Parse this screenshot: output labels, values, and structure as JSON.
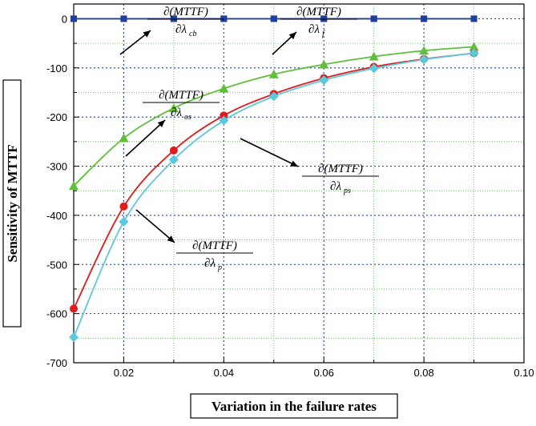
{
  "chart_data": {
    "type": "line",
    "xlabel": "Variation in the failure rates",
    "ylabel": "Sensitivity of MTTF",
    "xlim": [
      0.01,
      0.1
    ],
    "ylim": [
      -700,
      30
    ],
    "x_ticks": [
      "0.02",
      "0.04",
      "0.06",
      "0.08",
      "0.10"
    ],
    "y_ticks": [
      "0",
      "-100",
      "-200",
      "-300",
      "-400",
      "-500",
      "-600",
      "-700"
    ],
    "grid": true,
    "x": [
      0.01,
      0.02,
      0.03,
      0.04,
      0.05,
      0.06,
      0.07,
      0.08,
      0.09
    ],
    "series": [
      {
        "key": "cb",
        "values": [
          0,
          0,
          0,
          0,
          0,
          0,
          0,
          0,
          0
        ],
        "color": "#1f3f9a",
        "marker": "square"
      },
      {
        "key": "f",
        "values": [
          0,
          0,
          0,
          0,
          0,
          0,
          0,
          0,
          0
        ],
        "color": "#1f3f9a",
        "marker": "square"
      },
      {
        "key": "os",
        "values": [
          -340,
          -243,
          -182,
          -142,
          -113,
          -93,
          -77,
          -65,
          -57
        ],
        "color": "#5fbf3a",
        "marker": "triangle"
      },
      {
        "key": "ps",
        "values": [
          -590,
          -382,
          -268,
          -197,
          -153,
          -121,
          -98,
          -82,
          -70
        ],
        "color": "#e01b1b",
        "marker": "circle"
      },
      {
        "key": "p",
        "values": [
          -648,
          -413,
          -287,
          -207,
          -158,
          -125,
          -101,
          -83,
          -70
        ],
        "color": "#5bc8de",
        "marker": "diamond"
      }
    ],
    "annotations": [
      {
        "num": "∂(MTTF)",
        "den": "∂λ",
        "sub": "cb"
      },
      {
        "num": "∂(MTTF)",
        "den": "∂λ",
        "sub": "f"
      },
      {
        "num": "∂(MTTF)",
        "den": "∂λ",
        "sub": "os"
      },
      {
        "num": "∂(MTTF)",
        "den": "∂λ",
        "sub": "ps"
      },
      {
        "num": "∂(MTTF)",
        "den": "∂λ",
        "sub": "p"
      }
    ]
  }
}
